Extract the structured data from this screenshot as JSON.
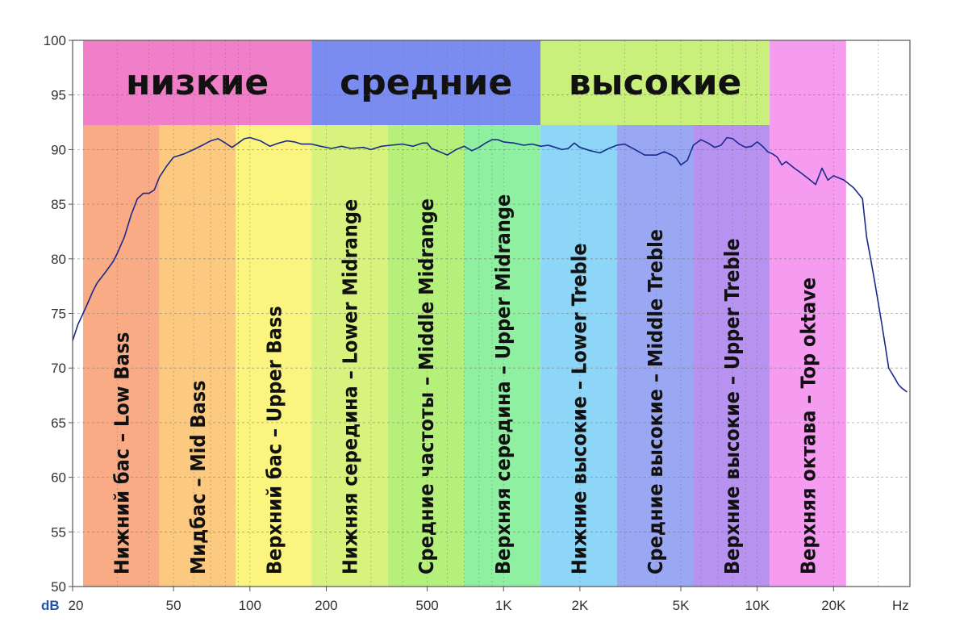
{
  "chart_data": {
    "type": "line",
    "xlabel": "",
    "ylabel": "",
    "x_scale": "log",
    "xlim": [
      20,
      40000
    ],
    "ylim": [
      50,
      100
    ],
    "grid": true,
    "y_unit": "dB",
    "x_unit": "Hz",
    "y_ticks": [
      100,
      95,
      90,
      85,
      80,
      75,
      70,
      65,
      60,
      55,
      50
    ],
    "x_ticks": [
      {
        "value": 20,
        "label": "20"
      },
      {
        "value": 50,
        "label": "50"
      },
      {
        "value": 100,
        "label": "100"
      },
      {
        "value": 200,
        "label": "200"
      },
      {
        "value": 500,
        "label": "500"
      },
      {
        "value": 1000,
        "label": "1K"
      },
      {
        "value": 2000,
        "label": "2K"
      },
      {
        "value": 5000,
        "label": "5K"
      },
      {
        "value": 10000,
        "label": "10K"
      },
      {
        "value": 20000,
        "label": "20K"
      }
    ],
    "groups": [
      {
        "label": "низкие",
        "from": 22,
        "to": 175,
        "color": "#f07ec8"
      },
      {
        "label": "средние",
        "from": 175,
        "to": 1400,
        "color": "#7b8cf0"
      },
      {
        "label": "высокие",
        "from": 1400,
        "to": 11200,
        "color": "#c9f07a"
      }
    ],
    "bands": [
      {
        "label": "Нижний бас – Low Bass",
        "from": 22,
        "to": 44,
        "color": "#f9ab85"
      },
      {
        "label": "Мидбас – Mid Bass",
        "from": 44,
        "to": 88,
        "color": "#fbca80"
      },
      {
        "label": "Верхний бас – Upper Bass",
        "from": 88,
        "to": 175,
        "color": "#fbf47e"
      },
      {
        "label": "Нижняя середина – Lower Midrange",
        "from": 175,
        "to": 350,
        "color": "#d8f27e"
      },
      {
        "label": "Средние частоты – Middle Midrange",
        "from": 350,
        "to": 700,
        "color": "#b4f07a"
      },
      {
        "label": "Верхняя середина – Upper Midrange",
        "from": 700,
        "to": 1400,
        "color": "#8ef0a0"
      },
      {
        "label": "Нижние высокие – Lower Treble",
        "from": 1400,
        "to": 2800,
        "color": "#8dd6f8"
      },
      {
        "label": "Средние высокие – Middle Treble",
        "from": 2800,
        "to": 5600,
        "color": "#9aa7f3"
      },
      {
        "label": "Верхние высокие – Upper Treble",
        "from": 5600,
        "to": 11200,
        "color": "#b892f0"
      },
      {
        "label": "Верхняя октава – Top oktave",
        "from": 11200,
        "to": 22400,
        "color": "#f59cf0"
      }
    ],
    "series": [
      {
        "color": "#1a2a8c",
        "x": [
          20,
          21,
          22,
          23,
          24,
          25,
          27,
          29,
          30,
          32,
          34,
          36,
          38,
          40,
          42,
          44,
          47,
          50,
          55,
          60,
          65,
          70,
          75,
          80,
          85,
          90,
          95,
          100,
          110,
          120,
          130,
          140,
          150,
          160,
          175,
          190,
          210,
          230,
          250,
          280,
          300,
          330,
          360,
          400,
          440,
          480,
          500,
          520,
          560,
          600,
          650,
          700,
          750,
          800,
          850,
          900,
          950,
          1000,
          1100,
          1200,
          1300,
          1400,
          1500,
          1600,
          1700,
          1800,
          1900,
          2000,
          2200,
          2400,
          2600,
          2800,
          3000,
          3300,
          3600,
          4000,
          4300,
          4600,
          4800,
          5000,
          5300,
          5600,
          6000,
          6400,
          6800,
          7200,
          7600,
          8000,
          8500,
          9000,
          9500,
          10000,
          10500,
          11000,
          11500,
          12000,
          12500,
          13000,
          14000,
          15000,
          16000,
          17000,
          18000,
          19000,
          20000,
          22000,
          24000,
          26000,
          27000,
          28000,
          29000,
          30000,
          31000,
          32000,
          33000,
          34000,
          35000,
          36000,
          37000,
          38000,
          39000
        ],
        "y": [
          72.5,
          74,
          75,
          76,
          77,
          77.8,
          78.8,
          79.8,
          80.5,
          82,
          84,
          85.5,
          86,
          86,
          86.3,
          87.5,
          88.5,
          89.3,
          89.6,
          90,
          90.4,
          90.8,
          91,
          90.6,
          90.2,
          90.6,
          91,
          91.1,
          90.8,
          90.3,
          90.6,
          90.8,
          90.7,
          90.5,
          90.5,
          90.3,
          90.1,
          90.3,
          90.1,
          90.2,
          90,
          90.3,
          90.4,
          90.5,
          90.3,
          90.6,
          90.6,
          90.1,
          89.8,
          89.5,
          90,
          90.3,
          89.9,
          90.2,
          90.6,
          90.9,
          90.9,
          90.7,
          90.6,
          90.4,
          90.5,
          90.3,
          90.4,
          90.2,
          90,
          90.1,
          90.6,
          90.2,
          89.9,
          89.7,
          90.1,
          90.4,
          90.5,
          90,
          89.5,
          89.5,
          89.8,
          89.5,
          89.2,
          88.6,
          89,
          90.4,
          90.9,
          90.6,
          90.2,
          90.4,
          91.1,
          91,
          90.5,
          90.2,
          90.3,
          90.7,
          90.3,
          89.8,
          89.6,
          89.3,
          88.6,
          88.9,
          88.3,
          87.8,
          87.3,
          86.8,
          88.3,
          87.2,
          87.6,
          87.2,
          86.5,
          85.5,
          82,
          80,
          78,
          76,
          74,
          72,
          70,
          69.5,
          69,
          68.5,
          68.2,
          68,
          67.8
        ]
      }
    ]
  }
}
